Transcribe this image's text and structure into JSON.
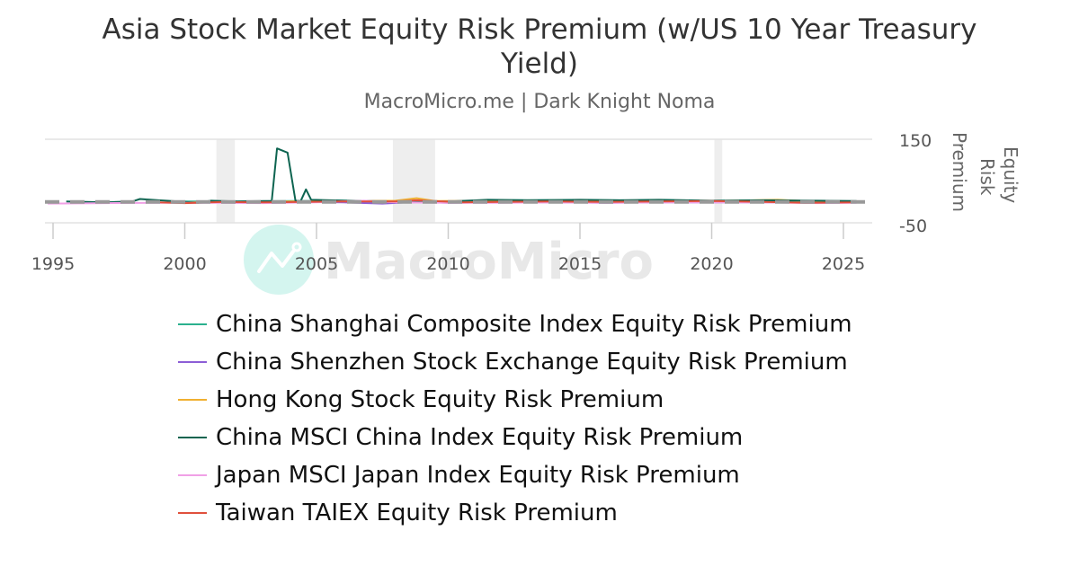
{
  "header": {
    "title_line1": "Asia Stock Market Equity Risk Premium (w/US 10 Year Treasury",
    "title_line2": "Yield)",
    "subtitle": "MacroMicro.me | Dark Knight Noma"
  },
  "watermark": {
    "text": "MacroMicro",
    "circle_color": "#d4f5ef"
  },
  "colors": {
    "shanghai": "#2bb08e",
    "shenzhen": "#8c5ed6",
    "hongkong": "#f0b030",
    "msci_china": "#0d6450",
    "japan": "#f0a0e6",
    "taiwan": "#e0503c",
    "zero_line": "#999999",
    "recession": "#eeeeee",
    "grid": "#e2e2e2"
  },
  "chart_data": {
    "type": "line",
    "title": "Asia Stock Market Equity Risk Premium (w/US 10 Year Treasury Yield)",
    "subtitle": "MacroMicro.me | Dark Knight Noma",
    "xlabel": "",
    "ylabel": "Equity Risk Premium",
    "y_axis_position": "right",
    "ylim": [
      -50,
      150
    ],
    "yticks": [
      -50,
      150
    ],
    "xlim": [
      1994.7,
      2025.9
    ],
    "xticks": [
      1995,
      2000,
      2005,
      2010,
      2015,
      2020,
      2025
    ],
    "grid": true,
    "legend_position": "bottom",
    "recession_bands": [
      [
        2001.2,
        2001.9
      ],
      [
        2007.9,
        2009.5
      ],
      [
        2020.1,
        2020.4
      ]
    ],
    "reference_line": {
      "y": 0,
      "style": "dashed",
      "color": "#999999"
    },
    "series": [
      {
        "name": "China Shanghai Composite Index Equity Risk Premium",
        "key": "shanghai",
        "x": [
          2000.0,
          2002.0,
          2004.0,
          2006.0,
          2008.0,
          2008.8,
          2010.0,
          2012.0,
          2014.0,
          2016.0,
          2018.0,
          2020.0,
          2022.0,
          2024.0,
          2025.5
        ],
        "values": [
          1,
          1,
          2,
          3,
          -1,
          3,
          1,
          4,
          4,
          4,
          3,
          2,
          3,
          2,
          1
        ]
      },
      {
        "name": "China Shenzhen Stock Exchange Equity Risk Premium",
        "key": "shenzhen",
        "x": [
          2000.0,
          2002.0,
          2004.0,
          2006.0,
          2007.5,
          2008.8,
          2010.0,
          2012.0,
          2014.0,
          2016.0,
          2018.0,
          2020.0,
          2022.0,
          2024.0,
          2025.5
        ],
        "values": [
          -2,
          -1,
          0,
          -1,
          -4,
          0,
          -2,
          -1,
          -1,
          -2,
          -1,
          -1,
          -1,
          -2,
          -1
        ]
      },
      {
        "name": "Hong Kong Stock Equity Risk Premium",
        "key": "hongkong",
        "x": [
          2000.0,
          2002.0,
          2004.0,
          2006.0,
          2008.0,
          2008.8,
          2009.5,
          2012.0,
          2014.0,
          2016.0,
          2018.0,
          2020.0,
          2022.5,
          2024.0,
          2025.5
        ],
        "values": [
          -1,
          0,
          1,
          2,
          3,
          9,
          2,
          3,
          2,
          3,
          3,
          2,
          5,
          1,
          1
        ]
      },
      {
        "name": "China MSCI China Index Equity Risk Premium",
        "key": "msci_china",
        "x": [
          1995.5,
          1997.0,
          1998.0,
          1998.3,
          1999.0,
          1999.5,
          2000.5,
          2001.0,
          2002.0,
          2003.0,
          2003.3,
          2003.5,
          2003.9,
          2004.2,
          2004.4,
          2004.6,
          2004.8,
          2005.5,
          2007.0,
          2008.5,
          2010.0,
          2011.5,
          2013.0,
          2015.0,
          2016.5,
          2018.0,
          2020.0,
          2022.0,
          2024.0,
          2025.5
        ],
        "values": [
          1,
          -1,
          1,
          7,
          4,
          2,
          -2,
          3,
          1,
          2,
          2,
          128,
          118,
          3,
          2,
          30,
          5,
          4,
          2,
          -1,
          1,
          5,
          4,
          5,
          4,
          5,
          3,
          4,
          3,
          2
        ]
      },
      {
        "name": "Japan MSCI Japan Index Equity Risk Premium",
        "key": "japan",
        "x": [
          1994.8,
          1997.0,
          1999.0,
          2001.0,
          2003.0,
          2005.0,
          2006.8,
          2008.0,
          2010.0,
          2012.0,
          2014.0,
          2016.0,
          2018.0,
          2020.0,
          2022.0,
          2024.0,
          2025.5
        ],
        "values": [
          -4,
          -3,
          -2,
          -2,
          -3,
          -1,
          3,
          -1,
          -2,
          -2,
          -1,
          -2,
          -1,
          -1,
          -1,
          -3,
          -2
        ]
      },
      {
        "name": "Taiwan TAIEX Equity Risk Premium",
        "key": "taiwan",
        "x": [
          1999.0,
          2000.0,
          2001.5,
          2003.0,
          2004.5,
          2006.0,
          2008.0,
          2008.8,
          2010.5,
          2012.0,
          2014.0,
          2016.0,
          2018.0,
          2020.0,
          2022.0,
          2023.5,
          2025.5
        ],
        "values": [
          -1,
          -3,
          0,
          -1,
          0,
          1,
          1,
          4,
          -1,
          0,
          1,
          0,
          1,
          2,
          0,
          -2,
          -1
        ]
      }
    ]
  },
  "axis": {
    "y_tick_top": "150",
    "y_tick_bottom": "-50",
    "y_label_lines": [
      "Equity",
      "Risk",
      "Premium"
    ]
  },
  "legend": {
    "items": [
      {
        "label": "China Shanghai Composite Index Equity Risk Premium",
        "key": "shanghai"
      },
      {
        "label": "China Shenzhen Stock Exchange Equity Risk Premium",
        "key": "shenzhen"
      },
      {
        "label": "Hong Kong Stock Equity Risk Premium",
        "key": "hongkong"
      },
      {
        "label": "China MSCI China Index Equity Risk Premium",
        "key": "msci_china"
      },
      {
        "label": "Japan MSCI Japan Index Equity Risk Premium",
        "key": "japan"
      },
      {
        "label": "Taiwan TAIEX Equity Risk Premium",
        "key": "taiwan"
      }
    ]
  }
}
